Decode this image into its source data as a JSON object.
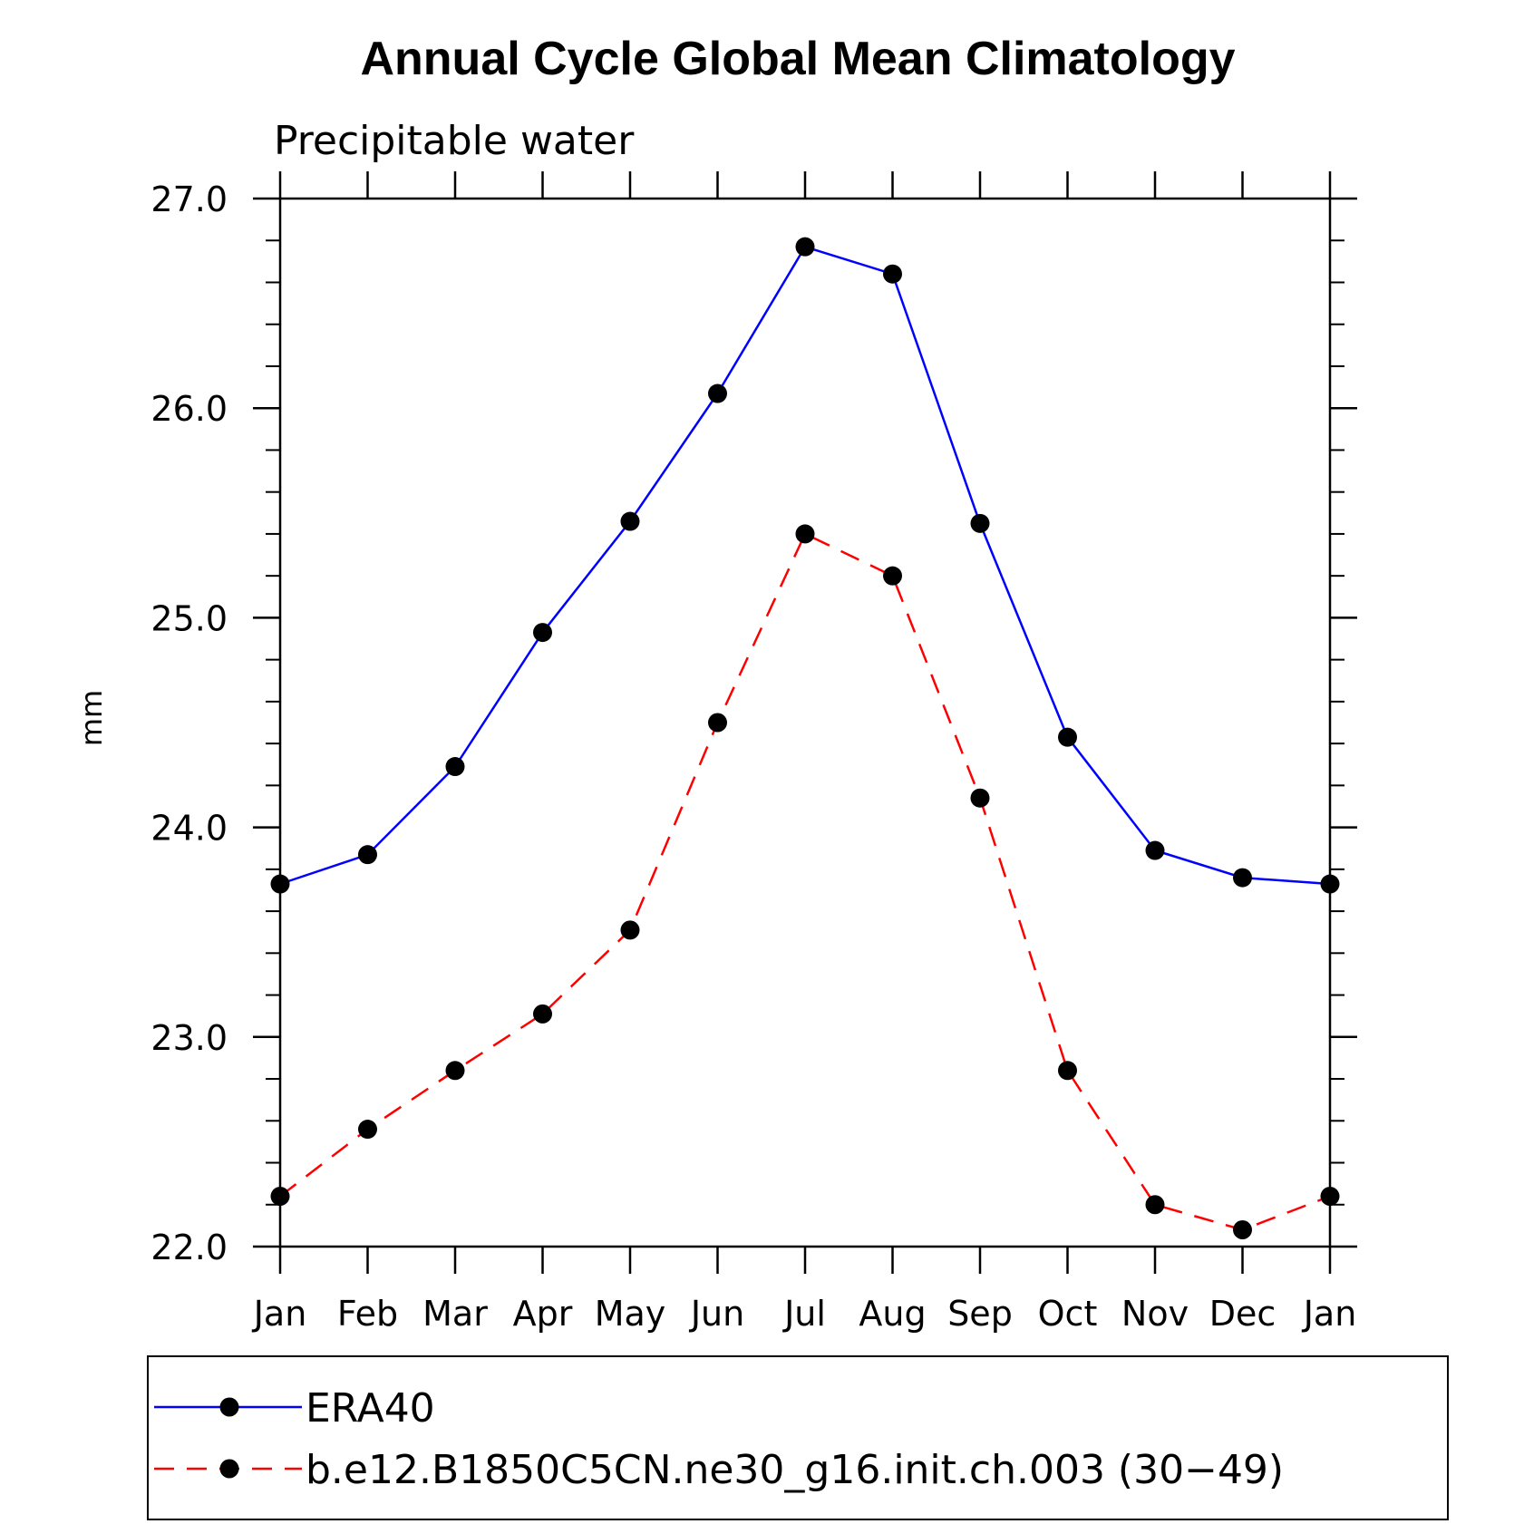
{
  "title": "Annual Cycle Global Mean Climatology",
  "subtitle": "Precipitable water",
  "chart_data": {
    "type": "line",
    "ylabel": "mm",
    "ylim": [
      22.0,
      27.0
    ],
    "y_ticks": [
      "22.0",
      "23.0",
      "24.0",
      "25.0",
      "26.0",
      "27.0"
    ],
    "categories": [
      "Jan",
      "Feb",
      "Mar",
      "Apr",
      "May",
      "Jun",
      "Jul",
      "Aug",
      "Sep",
      "Oct",
      "Nov",
      "Dec",
      "Jan"
    ],
    "grid": false,
    "legend_position": "bottom",
    "series": [
      {
        "name": "ERA40",
        "color": "#0000ff",
        "line_style": "solid",
        "marker": "filled-circle",
        "values": [
          23.73,
          23.87,
          24.29,
          24.93,
          25.46,
          26.07,
          26.77,
          26.64,
          25.45,
          24.43,
          23.89,
          23.76,
          23.73
        ]
      },
      {
        "name": "b.e12.B1850C5CN.ne30_g16.init.ch.003 (30−49)",
        "color": "#ff0000",
        "line_style": "dashed",
        "marker": "filled-circle",
        "values": [
          22.24,
          22.56,
          22.84,
          23.11,
          23.51,
          24.5,
          25.4,
          25.2,
          24.14,
          22.84,
          22.2,
          22.08,
          22.24
        ]
      }
    ]
  }
}
